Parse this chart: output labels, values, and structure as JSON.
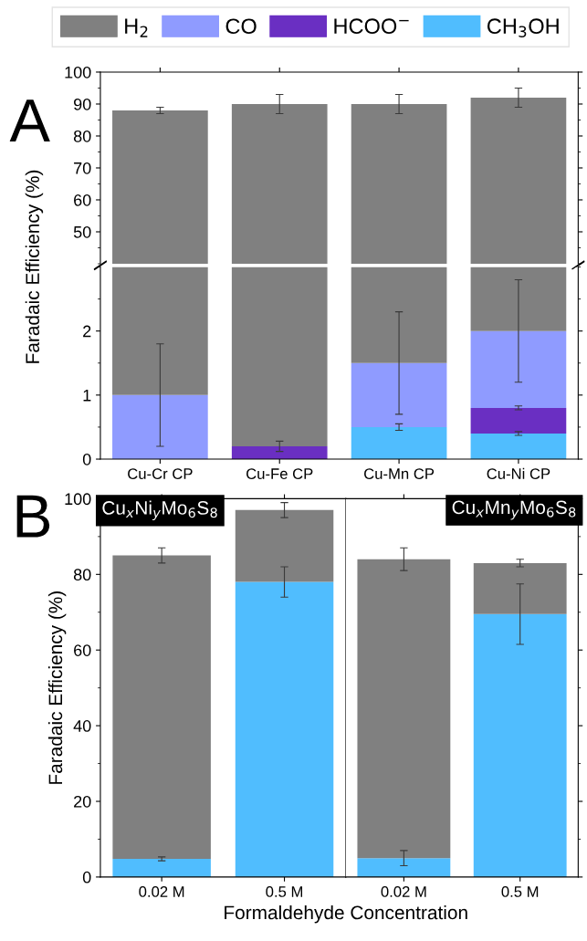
{
  "chart_data": [
    {
      "type": "bar",
      "categories": [
        "Cu-Cr CP",
        "Cu-Fe CP",
        "Cu-Mn CP",
        "Cu-Ni CP"
      ],
      "ylim": [
        40,
        100
      ],
      "yticks": [
        50,
        60,
        70,
        80,
        90,
        100
      ],
      "tick_labels": "y",
      "annotations": [
        "A"
      ],
      "series": [
        {
          "color": "#808080",
          "values": [
            88,
            90,
            90,
            92
          ],
          "errors": [
            1,
            3,
            3,
            3
          ]
        }
      ]
    },
    {
      "type": "bar",
      "stacked": true,
      "categories": [
        "Cu-Cr CP",
        "Cu-Fe CP",
        "Cu-Mn CP",
        "Cu-Ni CP"
      ],
      "ylim": [
        0,
        3
      ],
      "yticks": [
        0,
        1,
        2
      ],
      "ylabel": "Faradaic Efficiency (%)",
      "legend": "top",
      "series": [
        {
          "name": "CH$_{3}$OH",
          "color": "#50bdfe",
          "values": [
            null,
            null,
            0.5,
            0.4
          ],
          "errors": [
            null,
            null,
            0.05,
            0.03
          ]
        },
        {
          "name": "HCOO$^{−}$",
          "color": "#6a2fc2",
          "values": [
            null,
            0.2,
            null,
            0.4
          ],
          "errors": [
            null,
            0.08,
            null,
            0.03
          ]
        },
        {
          "name": "CO",
          "color": "#8f9bff",
          "values": [
            1.0,
            null,
            1.0,
            1.2
          ],
          "errors": [
            0.8,
            null,
            0.8,
            0.8
          ]
        },
        {
          "name": "H$_{2}$",
          "color": "#808080",
          "values": [
            2.0,
            2.8,
            1.5,
            1.0
          ]
        }
      ]
    },
    {
      "type": "bar",
      "stacked": true,
      "categories": [
        "0.02 M",
        "0.5 M"
      ],
      "ylim": [
        0,
        100
      ],
      "yticks": [
        0,
        20,
        40,
        60,
        80,
        100
      ],
      "ylabel": "Faradaic Efficiency (%)",
      "xlabel": "Formaldehyde Concentration",
      "annotations": [
        "B",
        "Cu$_{x}$Ni$_{y}$Mo$_{6}$S$_{8}$"
      ],
      "series": [
        {
          "color": "#50bdfe",
          "values": [
            4.8,
            78
          ],
          "errors": [
            0.5,
            4
          ]
        },
        {
          "color": "#808080",
          "values": [
            80.2,
            19
          ],
          "errors": [
            2,
            2
          ]
        }
      ]
    },
    {
      "type": "bar",
      "stacked": true,
      "categories": [
        "0.02 M",
        "0.5 M"
      ],
      "ylim": [
        0,
        100
      ],
      "yticks": [
        0,
        20,
        40,
        60,
        80,
        100
      ],
      "tick_labels": "x",
      "annotations": [
        "Cu$_{x}$Mn$_{y}$Mo$_{6}$S$_{8}$"
      ],
      "series": [
        {
          "color": "#50bdfe",
          "values": [
            5,
            69.5
          ],
          "errors": [
            2,
            8
          ]
        },
        {
          "color": "#808080",
          "values": [
            79,
            13.5
          ],
          "errors": [
            3,
            1
          ]
        }
      ]
    }
  ]
}
